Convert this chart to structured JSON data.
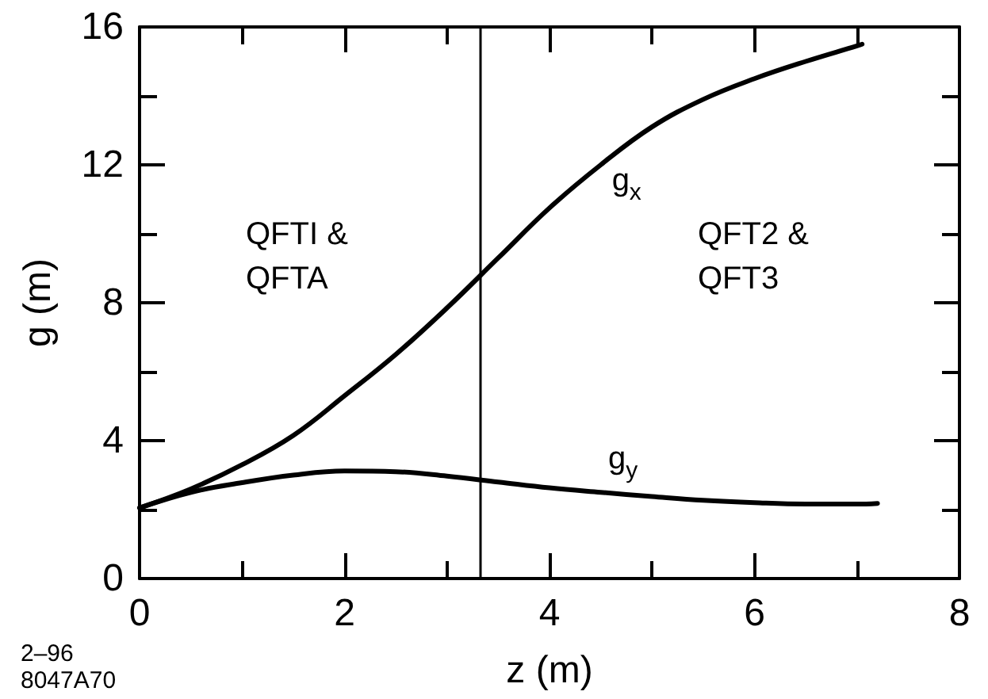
{
  "chart_data": {
    "type": "line",
    "xlabel": "z (m)",
    "ylabel": "g (m)",
    "series": [
      {
        "name": "g$_{x}$",
        "color": "#000000",
        "x": [
          0,
          0.5,
          1,
          1.5,
          2,
          2.5,
          3,
          3.5,
          4,
          4.5,
          5,
          5.5,
          6,
          6.5,
          7,
          7.05
        ],
        "values": [
          2.05,
          2.6,
          3.3,
          4.15,
          5.3,
          6.5,
          7.85,
          9.3,
          10.75,
          12.0,
          13.1,
          13.9,
          14.5,
          15.0,
          15.45,
          15.5
        ]
      },
      {
        "name": "g$_{y}$",
        "color": "#000000",
        "x": [
          0,
          0.5,
          1,
          1.5,
          2,
          2.5,
          3,
          3.5,
          4,
          4.5,
          5,
          5.5,
          6,
          6.5,
          7,
          7.2
        ],
        "values": [
          2.05,
          2.5,
          2.78,
          3.0,
          3.12,
          3.1,
          2.97,
          2.8,
          2.63,
          2.5,
          2.38,
          2.27,
          2.2,
          2.16,
          2.16,
          2.18
        ]
      }
    ],
    "xlim": [
      0,
      8
    ],
    "xticks": [
      0,
      {
        "value": 1,
        "label": null
      },
      2,
      {
        "value": 3,
        "label": null
      },
      4,
      {
        "value": 5,
        "label": null
      },
      6,
      {
        "value": 7,
        "label": null
      },
      8
    ],
    "ylim": [
      0,
      16
    ],
    "yticks": [
      0,
      {
        "value": 2,
        "label": null
      },
      4,
      {
        "value": 6,
        "label": null
      },
      8,
      {
        "value": 10,
        "label": null
      },
      12,
      {
        "value": 14,
        "label": null
      },
      16
    ],
    "ref_lines": [
      {
        "axis": "x",
        "value": 3.33,
        "color": "#000000"
      }
    ],
    "annotations": [
      "QFTI &\nQFTA",
      "QFT2 &\nQFT3",
      "2–96\n8047A70"
    ],
    "grid": false,
    "legend": false,
    "marker": "none",
    "line_style": "solid"
  }
}
